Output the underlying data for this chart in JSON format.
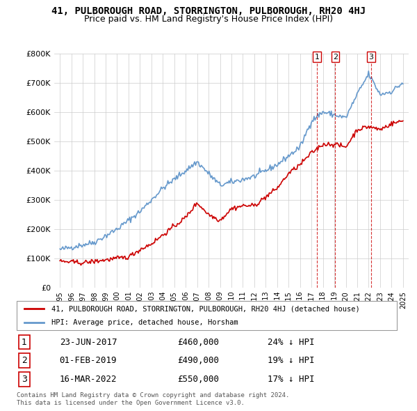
{
  "title": "41, PULBOROUGH ROAD, STORRINGTON, PULBOROUGH, RH20 4HJ",
  "subtitle": "Price paid vs. HM Land Registry's House Price Index (HPI)",
  "hpi_label": "HPI: Average price, detached house, Horsham",
  "property_label": "41, PULBOROUGH ROAD, STORRINGTON, PULBOROUGH, RH20 4HJ (detached house)",
  "hpi_color": "#6699cc",
  "price_color": "#cc0000",
  "transactions": [
    {
      "num": 1,
      "date": "23-JUN-2017",
      "price": "£460,000",
      "pct": "24% ↓ HPI",
      "year": 2017.48,
      "value": 460000
    },
    {
      "num": 2,
      "date": "01-FEB-2019",
      "price": "£490,000",
      "pct": "19% ↓ HPI",
      "year": 2019.08,
      "value": 490000
    },
    {
      "num": 3,
      "date": "16-MAR-2022",
      "price": "£550,000",
      "pct": "17% ↓ HPI",
      "year": 2022.21,
      "value": 550000
    }
  ],
  "copyright": "Contains HM Land Registry data © Crown copyright and database right 2024.\nThis data is licensed under the Open Government Licence v3.0.",
  "ylim": [
    0,
    800000
  ],
  "yticks": [
    0,
    100000,
    200000,
    300000,
    400000,
    500000,
    600000,
    700000,
    800000
  ],
  "ytick_labels": [
    "£0",
    "£100K",
    "£200K",
    "£300K",
    "£400K",
    "£500K",
    "£600K",
    "£700K",
    "£800K"
  ]
}
